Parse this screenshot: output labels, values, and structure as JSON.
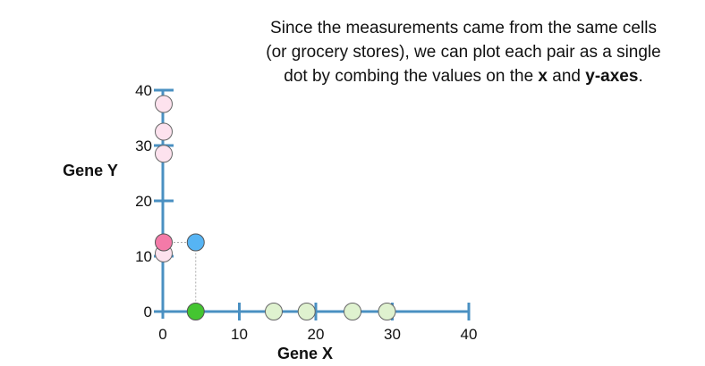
{
  "caption": {
    "line1": "Since the measurements came from the same cells",
    "line2": "(or grocery stores), we can plot each pair as a single",
    "line3_prefix": "dot by combing the values on the ",
    "line3_x": "x",
    "line3_and": " and ",
    "line3_y": "y-axes",
    "line3_suffix": "."
  },
  "chart_data": {
    "type": "scatter",
    "xlabel": "Gene X",
    "ylabel": "Gene Y",
    "xlim": [
      0,
      40
    ],
    "ylim": [
      0,
      40
    ],
    "xticks": [
      0,
      10,
      20,
      30,
      40
    ],
    "yticks": [
      0,
      10,
      20,
      30,
      40
    ],
    "axis_color": "#4a90c2",
    "gene_x_values_on_axis": [
      4.3,
      14.5,
      18.8,
      24.8,
      29.3
    ],
    "gene_y_values_on_axis": [
      12.5,
      10.5,
      28.5,
      32.5,
      37.5
    ],
    "combined_point": {
      "x": 4.3,
      "y": 12.5,
      "color": "#56b4f4"
    },
    "highlighted_x": {
      "value": 4.3,
      "color": "#44c531"
    },
    "highlighted_y": {
      "value": 12.5,
      "color": "#f47aa8"
    },
    "x_faded_color": "#dff2cf",
    "y_faded_color": "#fde2ee"
  }
}
